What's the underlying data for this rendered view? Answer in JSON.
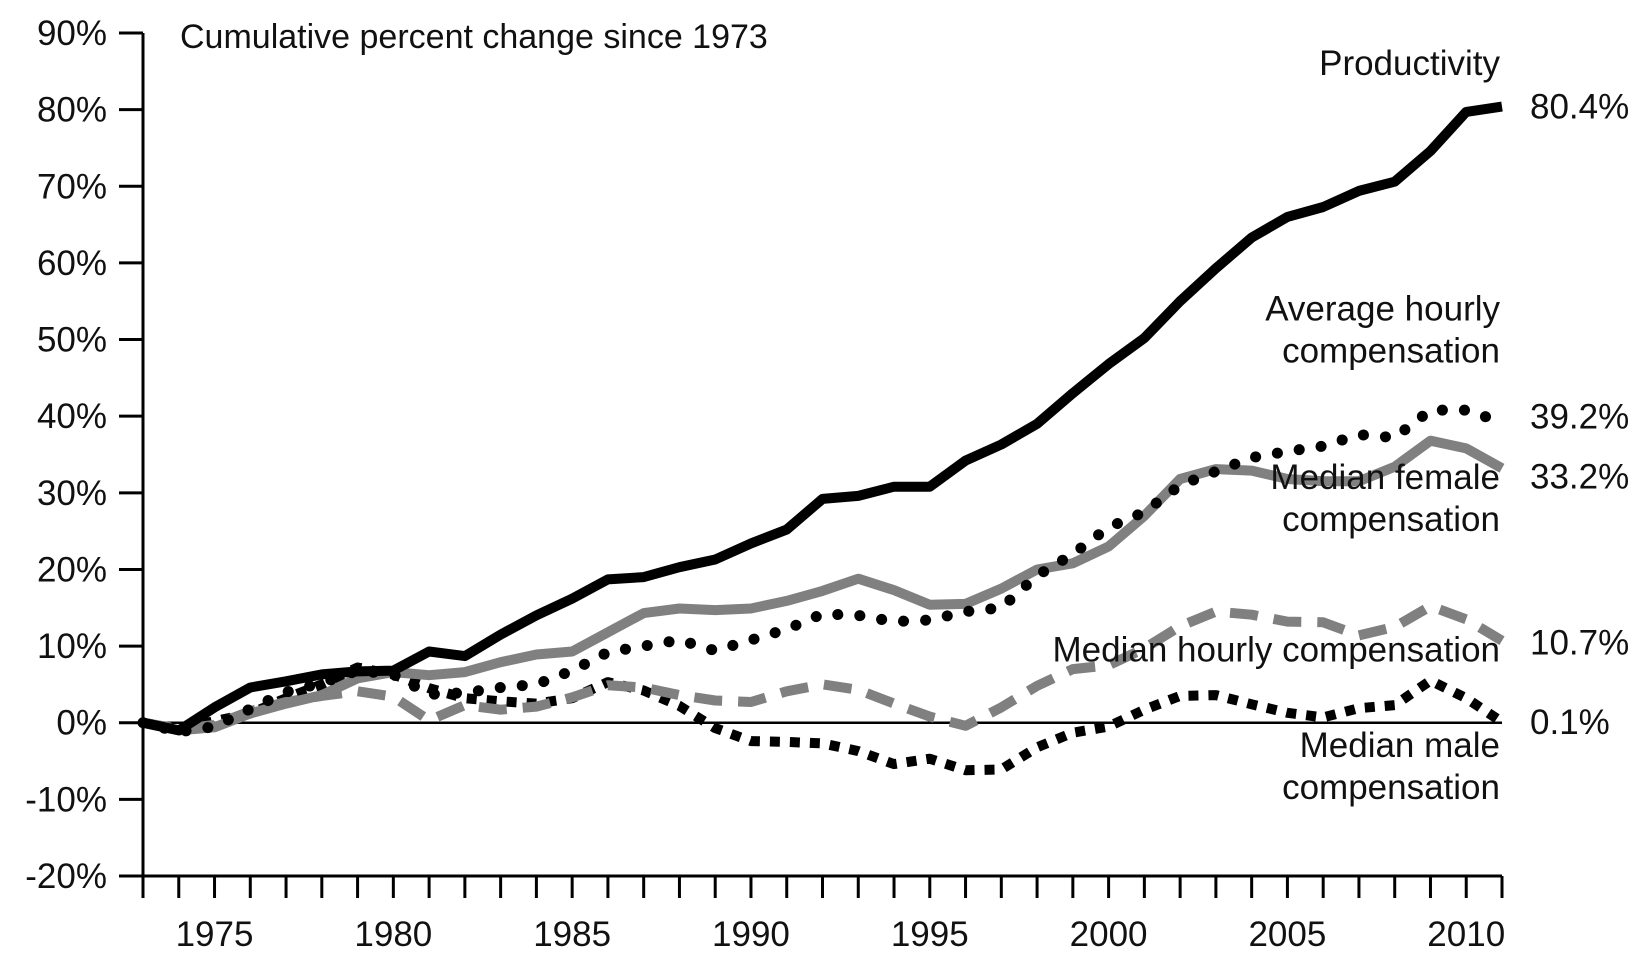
{
  "chart_data": {
    "type": "line",
    "title": "Cumulative percent change since 1973",
    "xlabel": "",
    "ylabel": "",
    "xlim": [
      1973,
      2011
    ],
    "ylim": [
      -20,
      90
    ],
    "grid": false,
    "legend": "inline-right",
    "x": [
      1973,
      1974,
      1975,
      1976,
      1977,
      1978,
      1979,
      1980,
      1981,
      1982,
      1983,
      1984,
      1985,
      1986,
      1987,
      1988,
      1989,
      1990,
      1991,
      1992,
      1993,
      1994,
      1995,
      1996,
      1997,
      1998,
      1999,
      2000,
      2001,
      2002,
      2003,
      2004,
      2005,
      2006,
      2007,
      2008,
      2009,
      2010,
      2011
    ],
    "y_ticks": [
      {
        "value": 90,
        "label": "90%"
      },
      {
        "value": 80,
        "label": "80%"
      },
      {
        "value": 70,
        "label": "70%"
      },
      {
        "value": 60,
        "label": "60%"
      },
      {
        "value": 50,
        "label": "50%"
      },
      {
        "value": 40,
        "label": "40%"
      },
      {
        "value": 30,
        "label": "30%"
      },
      {
        "value": 20,
        "label": "20%"
      },
      {
        "value": 10,
        "label": "10%"
      },
      {
        "value": 0,
        "label": "0%"
      },
      {
        "value": -10,
        "label": "-10%"
      },
      {
        "value": -20,
        "label": "-20%"
      }
    ],
    "x_tick_labels": [
      {
        "value": 1975,
        "label": "1975"
      },
      {
        "value": 1980,
        "label": "1980"
      },
      {
        "value": 1985,
        "label": "1985"
      },
      {
        "value": 1990,
        "label": "1990"
      },
      {
        "value": 1995,
        "label": "1995"
      },
      {
        "value": 2000,
        "label": "2000"
      },
      {
        "value": 2005,
        "label": "2005"
      },
      {
        "value": 2010,
        "label": "2010"
      }
    ],
    "series": [
      {
        "name": "Productivity",
        "label_lines": [
          "Productivity"
        ],
        "end_label": "80.4%",
        "color": "#000000",
        "style": "solid",
        "values": [
          0,
          -1,
          2,
          4.6,
          5.4,
          6.3,
          6.7,
          6.8,
          9.3,
          8.7,
          11.5,
          14,
          16.2,
          18.7,
          19,
          20.3,
          21.3,
          23.4,
          25.2,
          29.2,
          29.6,
          30.8,
          30.8,
          34.2,
          36.3,
          39,
          43,
          46.8,
          50.2,
          55,
          59.3,
          63.3,
          66,
          67.3,
          69.4,
          70.6,
          74.6,
          79.7,
          80.4
        ]
      },
      {
        "name": "Average hourly compensation",
        "label_lines": [
          "Average hourly",
          "compensation"
        ],
        "end_label": "39.2%",
        "color": "#000000",
        "style": "dotted-round",
        "values": [
          0,
          -1.2,
          -0.5,
          1.8,
          4,
          5.2,
          6.8,
          6.3,
          3.7,
          3.9,
          4.6,
          5,
          6.8,
          9.2,
          10,
          10.8,
          9.4,
          10.8,
          12.2,
          14.2,
          14,
          13.2,
          13.4,
          14.5,
          15,
          19.2,
          22,
          25.5,
          27.5,
          31,
          32.8,
          34.6,
          35.4,
          36.1,
          37.6,
          37.2,
          40.8,
          40.8,
          39.2
        ]
      },
      {
        "name": "Median female compensation",
        "label_lines": [
          "Median female",
          "compensation"
        ],
        "end_label": "33.2%",
        "color": "#808080",
        "style": "solid",
        "values": [
          0,
          -1,
          -0.6,
          1.2,
          2.5,
          3.6,
          5.8,
          6.6,
          6.2,
          6.6,
          7.9,
          8.9,
          9.3,
          11.8,
          14.3,
          14.9,
          14.7,
          14.9,
          15.9,
          17.2,
          18.8,
          17.3,
          15.4,
          15.5,
          17.5,
          20,
          20.8,
          23,
          27,
          31.8,
          33.1,
          32.9,
          31.8,
          31.5,
          31.5,
          33.4,
          36.8,
          35.8,
          33.2
        ]
      },
      {
        "name": "Median hourly compensation",
        "label_lines": [
          "Median hourly compensation"
        ],
        "end_label": "10.7%",
        "color": "#808080",
        "style": "dashed",
        "values": [
          0,
          -0.8,
          -0.3,
          1.5,
          2.7,
          3.5,
          4.1,
          3.4,
          0.3,
          2.3,
          1.7,
          2.1,
          3.3,
          4.9,
          4.6,
          3.6,
          2.9,
          2.7,
          4.1,
          5,
          4.3,
          2.5,
          0.8,
          -0.4,
          2,
          4.8,
          7,
          7.5,
          9.7,
          12.6,
          14.5,
          14.1,
          13.2,
          13.1,
          11.4,
          12.5,
          15.2,
          13.5,
          10.7
        ]
      },
      {
        "name": "Median male compensation",
        "label_lines": [
          "Median male",
          "compensation"
        ],
        "end_label": "0.1%",
        "color": "#000000",
        "style": "dotted-square",
        "values": [
          0,
          -0.8,
          0.2,
          1.2,
          3.2,
          5,
          7.2,
          6.3,
          4.5,
          3.2,
          2.8,
          2.5,
          3.2,
          5.3,
          4.2,
          2.2,
          -0.7,
          -2.4,
          -2.5,
          -2.7,
          -3.7,
          -5.4,
          -4.7,
          -6.2,
          -6.1,
          -3.2,
          -1.3,
          -0.5,
          1.7,
          3.5,
          3.6,
          2.4,
          1.3,
          0.7,
          1.9,
          2.3,
          5.5,
          3.2,
          0.1
        ]
      }
    ],
    "series_label_anchor_values": [
      {
        "series": "Productivity",
        "y_value": 84.5
      },
      {
        "series": "Average hourly compensation",
        "y_value": 52.5
      },
      {
        "series": "Median female compensation",
        "y_value": 30.5
      },
      {
        "series": "Median hourly compensation",
        "y_value": 8
      },
      {
        "series": "Median male compensation",
        "y_value": -4.5
      }
    ]
  }
}
